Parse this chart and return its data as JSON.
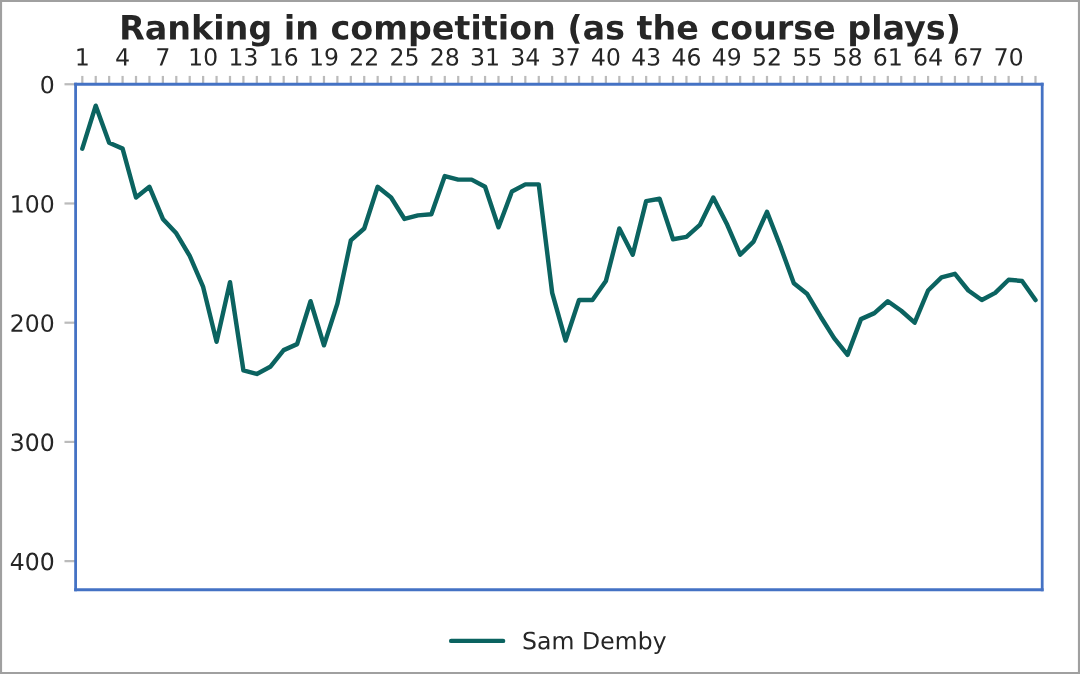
{
  "chart_data": {
    "type": "line",
    "title": "Ranking in competition (as the course plays)",
    "categories": [
      "1",
      null,
      null,
      "4",
      null,
      null,
      "7",
      null,
      null,
      "10",
      null,
      null,
      "13",
      null,
      null,
      "16",
      null,
      null,
      "19",
      null,
      null,
      "22",
      null,
      null,
      "25",
      null,
      null,
      "28",
      null,
      null,
      "31",
      null,
      null,
      "34",
      null,
      null,
      "37",
      null,
      null,
      "40",
      null,
      null,
      "43",
      null,
      null,
      "46",
      null,
      null,
      "49",
      null,
      null,
      "52",
      null,
      null,
      "55",
      null,
      null,
      "58",
      null,
      null,
      "61",
      null,
      null,
      "64",
      null,
      null,
      "67",
      null,
      null,
      "70",
      null,
      null
    ],
    "series": [
      {
        "name": "Sam Demby",
        "color": "#0b6360",
        "values": [
          54,
          18,
          49,
          54,
          95,
          86,
          113,
          125,
          144,
          170,
          216,
          166,
          240,
          243,
          237,
          223,
          218,
          182,
          219,
          184,
          131,
          121,
          86,
          95,
          113,
          110,
          109,
          77,
          80,
          80,
          86,
          120,
          90,
          84,
          84,
          175,
          215,
          181,
          181,
          165,
          121,
          143,
          98,
          96,
          130,
          128,
          118,
          95,
          117,
          143,
          132,
          107,
          136,
          167,
          176,
          195,
          213,
          227,
          197,
          192,
          182,
          190,
          200,
          173,
          162,
          159,
          173,
          181,
          175,
          164,
          165,
          181
        ]
      }
    ],
    "ylim": [
      424,
      0
    ],
    "yticks": [
      0,
      100,
      200,
      300,
      400
    ],
    "grid": false,
    "legend": "bottom",
    "marker": "none",
    "line_style": "solid"
  }
}
